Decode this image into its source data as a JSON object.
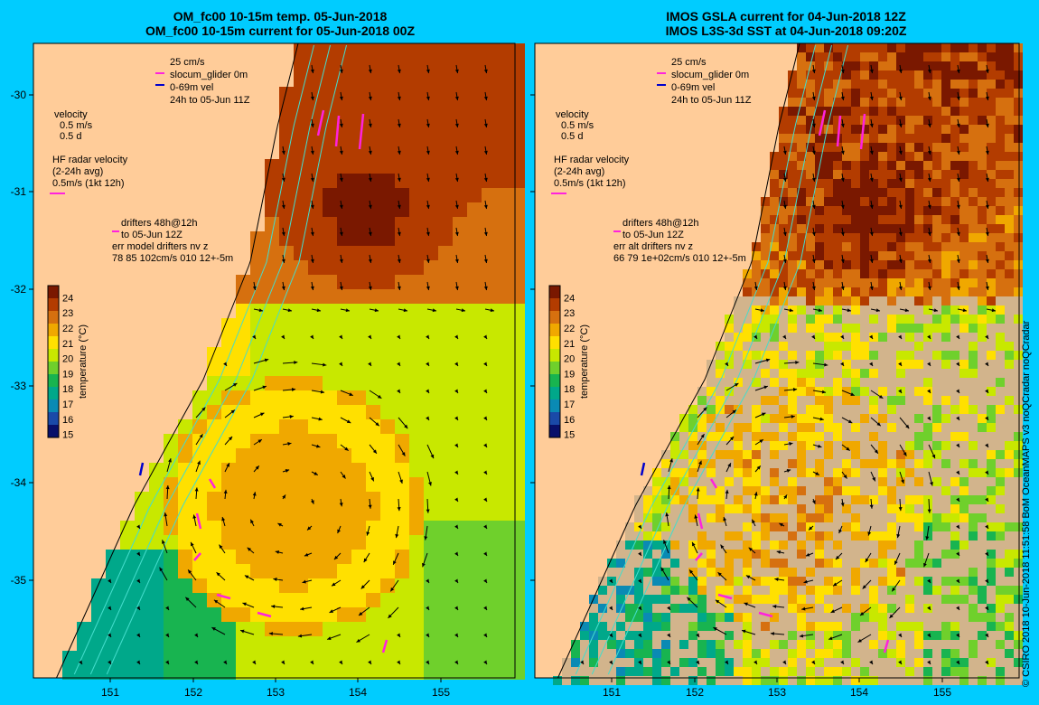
{
  "panels": [
    {
      "id": "left",
      "title_line1": "OM_fc00 10-15m temp. 05-Jun-2018",
      "title_line2": "OM_fc00 10-15m current for 05-Jun-2018 00Z",
      "legend": {
        "top": [
          "25 cm/s",
          "slocum_glider 0m",
          "0-69m vel",
          "24h to 05-Jun 11Z"
        ],
        "velocity": [
          "velocity",
          "0.5 m/s",
          "0.5 d"
        ],
        "hf": [
          "HF radar velocity",
          "(2-24h avg)",
          "0.5m/s (1kt 12h)"
        ],
        "drifters": [
          "drifters 48h@12h",
          "to 05-Jun 12Z",
          "err model drifters nv z",
          "78 85 102cm/s 010 12+-5m"
        ]
      }
    },
    {
      "id": "right",
      "title_line1": "IMOS GSLA current for 04-Jun-2018 12Z",
      "title_line2": "IMOS L3S-3d SST at 04-Jun-2018 09:20Z",
      "legend": {
        "top": [
          "25 cm/s",
          "slocum_glider 0m",
          "0-69m vel",
          "24h to 05-Jun 11Z"
        ],
        "velocity": [
          "velocity",
          "0.5 m/s",
          "0.5 d"
        ],
        "hf": [
          "HF radar velocity",
          "(2-24h avg)",
          "0.5m/s (1kt 12h)"
        ],
        "drifters": [
          "drifters 48h@12h",
          "to 05-Jun 12Z",
          "err alt drifters nv z",
          "66 79 1e+02cm/s 010 12+-5m"
        ]
      }
    }
  ],
  "colorbar": {
    "label": "temperature (°C)",
    "ticks": [
      24,
      23,
      22,
      21,
      20,
      19,
      18,
      17,
      16,
      15
    ],
    "colors": [
      "#7a1800",
      "#b33c00",
      "#d6700f",
      "#f0a800",
      "#ffe000",
      "#c8e800",
      "#6fd02c",
      "#18b450",
      "#00a88a",
      "#0a8ab4",
      "#1a4aa8",
      "#08106a"
    ]
  },
  "axes": {
    "x_ticks": [
      "151",
      "152",
      "153",
      "154",
      "155"
    ],
    "y_ticks": [
      "-30",
      "-31",
      "-32",
      "-33",
      "-34",
      "-35"
    ]
  },
  "credit": "© CSIRO 2018  10-Jun-2018 11:51:58 BoM OceanMAPS v3 noQCradar noQCradar",
  "colors": {
    "background": "#00ccff",
    "land": "#ffcc99",
    "sst_missing": "#d2b48c",
    "isobath": "#44ddcc",
    "glider": "#0000cc",
    "drifter": "#ff22dd"
  },
  "chart_data": [
    {
      "type": "heatmap",
      "title": "OM_fc00 10-15m temp. 05-Jun-2018",
      "subtitle": "OM_fc00 10-15m current for 05-Jun-2018 00Z",
      "xlabel": "",
      "ylabel": "",
      "xlim": [
        150.2,
        156.0
      ],
      "ylim": [
        -35.9,
        -29.5
      ],
      "colorbar_range": [
        14.8,
        24.8
      ],
      "overlay": "velocity arrows (anticyclonic eddy centred near 153.3E, 34.3S)"
    },
    {
      "type": "heatmap",
      "title": "IMOS GSLA current for 04-Jun-2018 12Z",
      "subtitle": "IMOS L3S-3d SST at 04-Jun-2018 09:20Z",
      "xlabel": "",
      "ylabel": "",
      "xlim": [
        150.2,
        156.0
      ],
      "ylim": [
        -35.9,
        -29.5
      ],
      "colorbar_range": [
        14.8,
        24.8
      ],
      "overlay": "velocity arrows (anticyclonic eddy centred near 153.3E, 34.3S)"
    }
  ]
}
